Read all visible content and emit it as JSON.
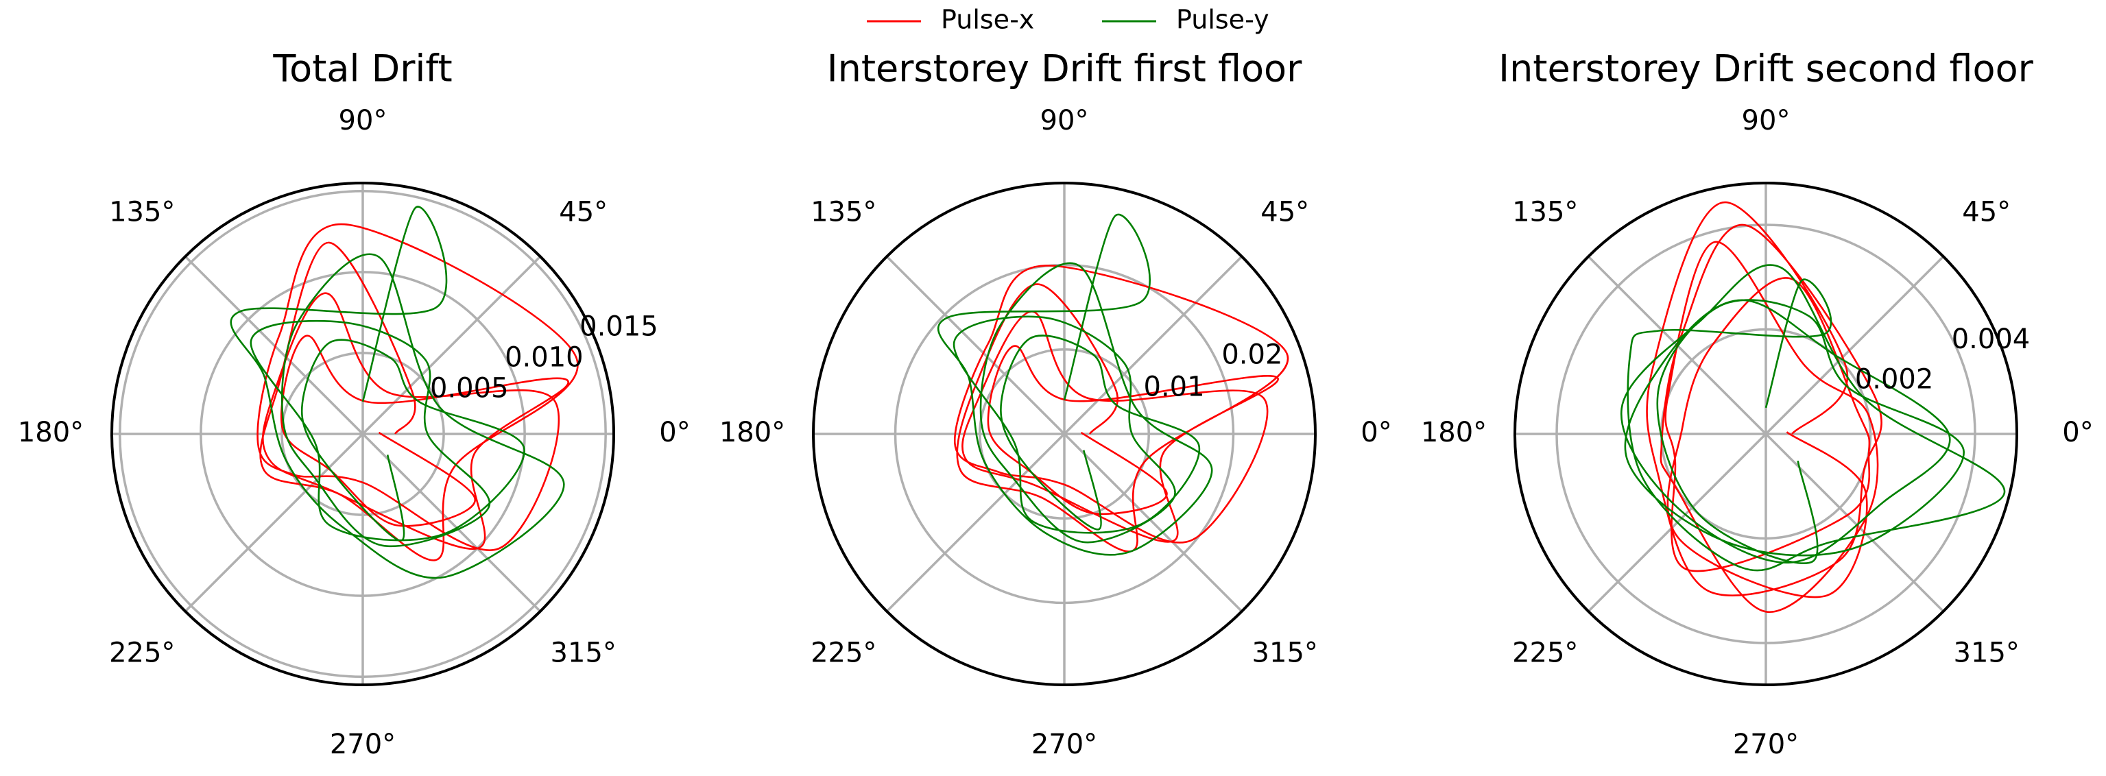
{
  "chart_data": [
    {
      "type": "polar",
      "title": "Total Drift",
      "legend": "upper center",
      "grid": true,
      "xlim": [
        0,
        360
      ],
      "xticks": [
        {
          "value": 0,
          "label": "0°"
        },
        {
          "value": 45,
          "label": "45°"
        },
        {
          "value": 90,
          "label": "90°"
        },
        {
          "value": 135,
          "label": "135°"
        },
        {
          "value": 180,
          "label": "180°"
        },
        {
          "value": 225,
          "label": "225°"
        },
        {
          "value": 270,
          "label": "270°"
        },
        {
          "value": 315,
          "label": "315°"
        }
      ],
      "ylim": [
        0,
        0.0155
      ],
      "yticks": [
        {
          "value": 0.005,
          "label": "0.005"
        },
        {
          "value": 0.01,
          "label": "0.010"
        },
        {
          "value": 0.015,
          "label": "0.015"
        }
      ],
      "series": [
        {
          "name": "Pulse-x",
          "color": "#ff0000",
          "x": [
            0,
            40,
            100,
            150,
            200,
            250,
            300,
            340,
            20,
            95,
            130,
            185,
            210,
            270,
            320,
            10,
            60,
            105,
            160,
            195,
            240,
            315,
            350,
            15,
            80,
            120,
            175,
            230,
            290,
            330,
            5
          ],
          "values": [
            0.002,
            0.004,
            0.012,
            0.006,
            0.0065,
            0.004,
            0.009,
            0.006,
            0.014,
            0.013,
            0.008,
            0.0065,
            0.005,
            0.003,
            0.011,
            0.012,
            0.003,
            0.009,
            0.006,
            0.006,
            0.004,
            0.01,
            0.007,
            0.013,
            0.002,
            0.007,
            0.005,
            0.003,
            0.006,
            0.008,
            0.001
          ]
        },
        {
          "name": "Pulse-y",
          "color": "#008000",
          "x": [
            90,
            77,
            60,
            135,
            150,
            200,
            260,
            300,
            346,
            20,
            85,
            120,
            170,
            220,
            280,
            330,
            0,
            50,
            100,
            140,
            190,
            250,
            310,
            355,
            30,
            70,
            110,
            160,
            230,
            290,
            320
          ],
          "values": [
            0.002,
            0.0143,
            0.009,
            0.0107,
            0.007,
            0.005,
            0.006,
            0.0102,
            0.0128,
            0.005,
            0.011,
            0.008,
            0.005,
            0.004,
            0.007,
            0.009,
            0.004,
            0.006,
            0.007,
            0.009,
            0.003,
            0.006,
            0.008,
            0.01,
            0.004,
            0.005,
            0.006,
            0.004,
            0.003,
            0.007,
            0.002
          ]
        }
      ]
    },
    {
      "type": "polar",
      "title": "Interstorey Drift first floor",
      "grid": true,
      "xlim": [
        0,
        360
      ],
      "xticks": [
        {
          "value": 0,
          "label": "0°"
        },
        {
          "value": 45,
          "label": "45°"
        },
        {
          "value": 90,
          "label": "90°"
        },
        {
          "value": 135,
          "label": "135°"
        },
        {
          "value": 180,
          "label": "180°"
        },
        {
          "value": 225,
          "label": "225°"
        },
        {
          "value": 270,
          "label": "270°"
        },
        {
          "value": 315,
          "label": "315°"
        }
      ],
      "ylim": [
        0,
        0.0297
      ],
      "yticks": [
        0.01,
        0.02
      ],
      "series": [
        {
          "name": "Pulse-x",
          "color": "#ff0000",
          "x": [
            0,
            40,
            100,
            150,
            200,
            250,
            300,
            340,
            20,
            95,
            130,
            185,
            210,
            270,
            320,
            10,
            60,
            105,
            160,
            195,
            240,
            315,
            350,
            15,
            80,
            120,
            175,
            230,
            290,
            330,
            5
          ],
          "values": [
            0.003,
            0.008,
            0.018,
            0.012,
            0.013,
            0.008,
            0.016,
            0.01,
            0.028,
            0.02,
            0.014,
            0.013,
            0.009,
            0.006,
            0.0196,
            0.024,
            0.005,
            0.015,
            0.011,
            0.012,
            0.007,
            0.018,
            0.012,
            0.026,
            0.004,
            0.012,
            0.009,
            0.006,
            0.01,
            0.014,
            0.002
          ]
        },
        {
          "name": "Pulse-y",
          "color": "#008000",
          "x": [
            90,
            77,
            60,
            135,
            150,
            200,
            260,
            300,
            346,
            20,
            85,
            120,
            170,
            220,
            280,
            330,
            0,
            50,
            100,
            140,
            190,
            250,
            310,
            355,
            30,
            70,
            110,
            160,
            230,
            290,
            320
          ],
          "values": [
            0.004,
            0.0264,
            0.018,
            0.0195,
            0.013,
            0.01,
            0.012,
            0.016,
            0.018,
            0.009,
            0.02,
            0.015,
            0.01,
            0.008,
            0.013,
            0.015,
            0.008,
            0.011,
            0.014,
            0.017,
            0.006,
            0.011,
            0.014,
            0.016,
            0.007,
            0.01,
            0.012,
            0.008,
            0.006,
            0.012,
            0.003
          ]
        }
      ]
    },
    {
      "type": "polar",
      "title": "Interstorey Drift second floor",
      "grid": true,
      "xlim": [
        0,
        360
      ],
      "xticks": [
        {
          "value": 0,
          "label": "0°"
        },
        {
          "value": 45,
          "label": "45°"
        },
        {
          "value": 90,
          "label": "90°"
        },
        {
          "value": 135,
          "label": "135°"
        },
        {
          "value": 180,
          "label": "180°"
        },
        {
          "value": 225,
          "label": "225°"
        },
        {
          "value": 270,
          "label": "270°"
        },
        {
          "value": 315,
          "label": "315°"
        }
      ],
      "ylim": [
        0,
        0.0048
      ],
      "yticks": [
        0.002,
        0.004
      ],
      "series": [
        {
          "name": "Pulse-x",
          "color": "#ff0000",
          "x": [
            0,
            40,
            100,
            150,
            200,
            250,
            300,
            340,
            20,
            95,
            130,
            185,
            210,
            270,
            320,
            10,
            60,
            105,
            160,
            195,
            240,
            315,
            350,
            15,
            80,
            120,
            175,
            230,
            290,
            330,
            5
          ],
          "values": [
            0.0005,
            0.002,
            0.0045,
            0.0025,
            0.0022,
            0.0032,
            0.0028,
            0.002,
            0.0022,
            0.004,
            0.0025,
            0.002,
            0.002,
            0.0034,
            0.0025,
            0.002,
            0.0015,
            0.0038,
            0.002,
            0.0018,
            0.003,
            0.0022,
            0.002,
            0.0018,
            0.003,
            0.002,
            0.0016,
            0.0026,
            0.0033,
            0.0022,
            0.0004
          ]
        },
        {
          "name": "Pulse-y",
          "color": "#008000",
          "x": [
            90,
            77,
            60,
            135,
            150,
            200,
            260,
            300,
            346,
            20,
            85,
            120,
            170,
            220,
            280,
            330,
            0,
            50,
            100,
            140,
            190,
            250,
            310,
            355,
            30,
            70,
            110,
            160,
            230,
            290,
            320
          ],
          "values": [
            0.0005,
            0.003,
            0.0022,
            0.0028,
            0.003,
            0.0025,
            0.0026,
            0.0024,
            0.0047,
            0.002,
            0.0032,
            0.0025,
            0.0028,
            0.0022,
            0.0025,
            0.0026,
            0.0035,
            0.002,
            0.0026,
            0.0024,
            0.0027,
            0.0022,
            0.0028,
            0.0038,
            0.0018,
            0.0024,
            0.0026,
            0.0022,
            0.002,
            0.0026,
            0.0008
          ]
        }
      ]
    }
  ]
}
